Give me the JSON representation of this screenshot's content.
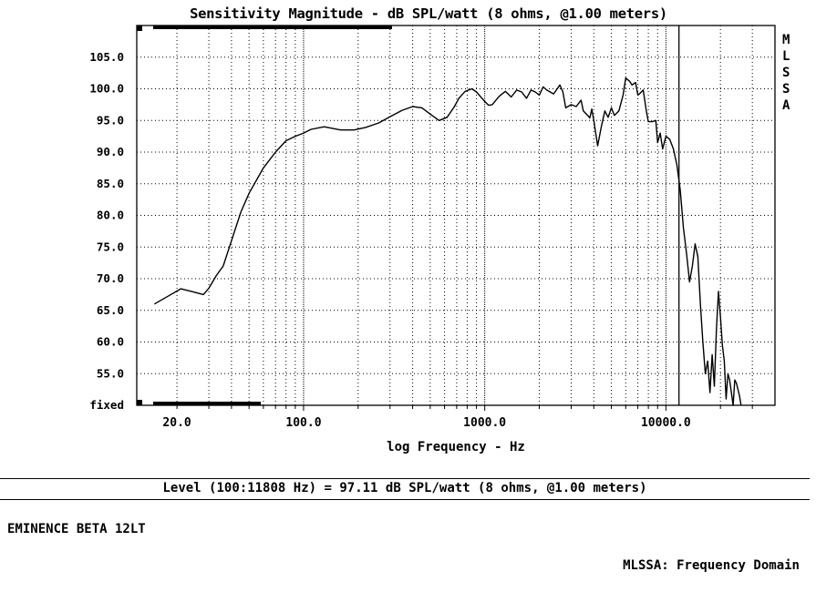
{
  "chart_data": {
    "type": "line",
    "title": "Sensitivity Magnitude - dB SPL/watt (8 ohms, @1.00 meters)",
    "xlabel": "log Frequency - Hz",
    "ylabel": "",
    "x_scale": "log",
    "xlim": [
      12,
      40000
    ],
    "ylim": [
      50,
      110
    ],
    "x_tick_labels": [
      "20.0",
      "100.0",
      "1000.0",
      "10000.0"
    ],
    "x_tick_values": [
      20,
      100,
      1000,
      10000
    ],
    "y_tick_labels": [
      "fixed",
      "55.0",
      "60.0",
      "65.0",
      "70.0",
      "75.0",
      "80.0",
      "85.0",
      "90.0",
      "95.0",
      "100.0",
      "105.0"
    ],
    "y_tick_values": [
      50,
      55,
      60,
      65,
      70,
      75,
      80,
      85,
      90,
      95,
      100,
      105
    ],
    "grid": true,
    "marker_frequency": 11808,
    "side_label": [
      "M",
      "L",
      "S",
      "S",
      "A"
    ],
    "series": [
      {
        "x": [
          15,
          18,
          21,
          24,
          28,
          30,
          33,
          36,
          40,
          45,
          50,
          60,
          70,
          80,
          90,
          100,
          110,
          130,
          160,
          190,
          220,
          260,
          300,
          350,
          400,
          450,
          500,
          560,
          620,
          680,
          720,
          780,
          850,
          900,
          1000,
          1050,
          1100,
          1200,
          1300,
          1400,
          1500,
          1600,
          1700,
          1800,
          1900,
          2000,
          2100,
          2200,
          2400,
          2600,
          2700,
          2800,
          3000,
          3200,
          3400,
          3500,
          3700,
          3800,
          3900,
          4000,
          4200,
          4400,
          4600,
          4800,
          5000,
          5200,
          5500,
          5800,
          6000,
          6300,
          6500,
          6800,
          7000,
          7200,
          7500,
          7800,
          8000,
          8400,
          8800,
          9000,
          9300,
          9600,
          10000,
          10500,
          11000,
          11500,
          12000,
          12500,
          13000,
          13500,
          14000,
          14500,
          15000,
          15500,
          16000,
          16500,
          17000,
          17500,
          18000,
          18500,
          19000,
          19500,
          20000,
          20500,
          21000,
          21500,
          22000,
          22500,
          23000,
          23500,
          24000,
          24500,
          25000,
          25500,
          26000
        ],
        "y": [
          66.0,
          67.3,
          68.4,
          68.0,
          67.5,
          68.5,
          70.5,
          72.0,
          76.0,
          80.5,
          83.5,
          87.5,
          90.0,
          91.8,
          92.5,
          93.0,
          93.6,
          94.0,
          93.5,
          93.5,
          93.9,
          94.6,
          95.6,
          96.6,
          97.2,
          97.0,
          96.0,
          95.0,
          95.5,
          97.2,
          98.5,
          99.6,
          100.0,
          99.5,
          98.0,
          97.4,
          97.5,
          98.8,
          99.6,
          98.7,
          99.8,
          99.5,
          98.5,
          99.8,
          99.5,
          99.0,
          100.3,
          99.8,
          99.2,
          100.6,
          99.5,
          97.0,
          97.5,
          97.2,
          98.2,
          96.5,
          95.8,
          95.4,
          96.8,
          95.0,
          91.0,
          94.0,
          96.5,
          95.5,
          97.0,
          95.8,
          96.5,
          99.0,
          101.7,
          101.2,
          100.6,
          101.0,
          99.0,
          99.3,
          99.8,
          96.5,
          94.8,
          94.8,
          95.0,
          91.5,
          93.0,
          90.5,
          92.5,
          92.0,
          90.5,
          88.0,
          84.0,
          78.0,
          74.0,
          69.5,
          72.0,
          75.5,
          73.5,
          66.0,
          60.0,
          55.0,
          57.0,
          52.0,
          58.0,
          53.0,
          62.0,
          68.0,
          64.0,
          59.5,
          57.0,
          51.0,
          55.0,
          54.0,
          52.0,
          50.0,
          54.0,
          53.5,
          52.5,
          51.5,
          50.0
        ]
      }
    ]
  },
  "x_axis_label": "log Frequency - Hz",
  "level_line": "Level (100:11808 Hz) = 97.11 dB SPL/watt (8 ohms, @1.00 meters)",
  "device_name": "EMINENCE BETA 12LT",
  "mode_label": "MLSSA: Frequency Domain"
}
